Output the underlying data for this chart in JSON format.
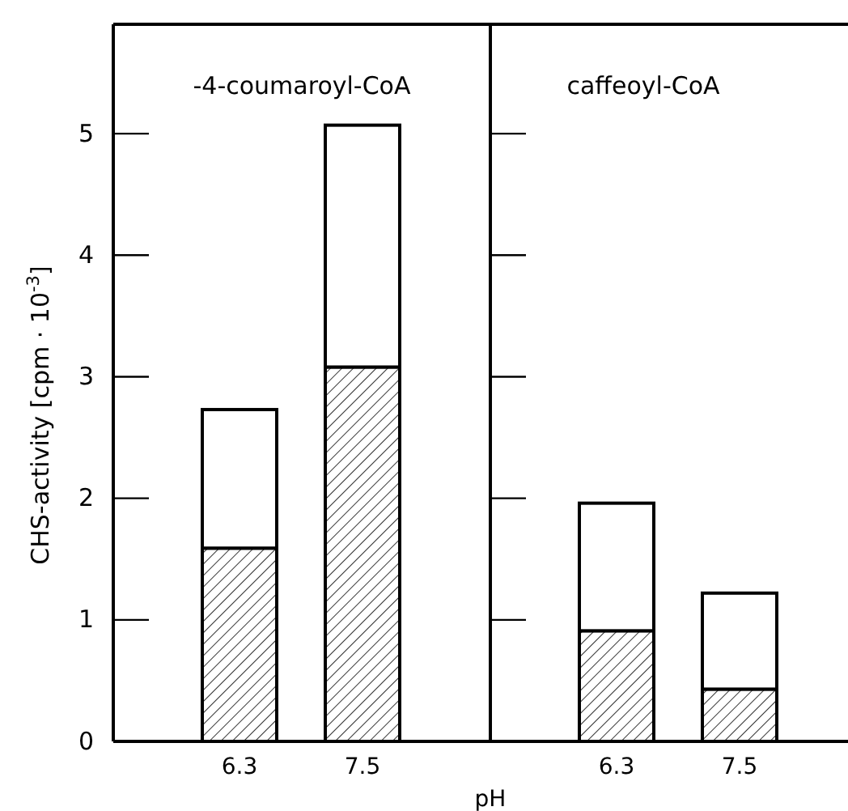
{
  "chart_data": [
    {
      "type": "bar",
      "title": "-4-coumaroyl-CoA",
      "xlabel": "pH",
      "ylabel": "CHS-activity [cpm · 10$^{-3}$]",
      "categories": [
        "6.3",
        "7.5"
      ],
      "stacked": true,
      "series": [
        {
          "color": "#000000",
          "values": [
            1.59,
            3.08
          ]
        },
        {
          "color": "#ffffff",
          "values": [
            1.14,
            1.99
          ]
        }
      ],
      "ylim": [
        0,
        5.9
      ],
      "yticks": [
        0,
        1,
        2,
        3,
        4,
        5
      ]
    },
    {
      "type": "bar",
      "title": "caffeoyl-CoA",
      "categories": [
        "6.3",
        "7.5"
      ],
      "stacked": true,
      "series": [
        {
          "color": "#000000",
          "values": [
            0.91,
            0.43
          ]
        },
        {
          "color": "#ffffff",
          "values": [
            1.05,
            0.79
          ]
        }
      ],
      "ylim": [
        0,
        5.9
      ],
      "yticks": [
        {
          "value": 1,
          "label": null
        },
        {
          "value": 2,
          "label": null
        },
        {
          "value": 3,
          "label": null
        },
        {
          "value": 4,
          "label": null
        },
        {
          "value": 5,
          "label": null
        }
      ],
      "tick_labels": "x"
    }
  ]
}
